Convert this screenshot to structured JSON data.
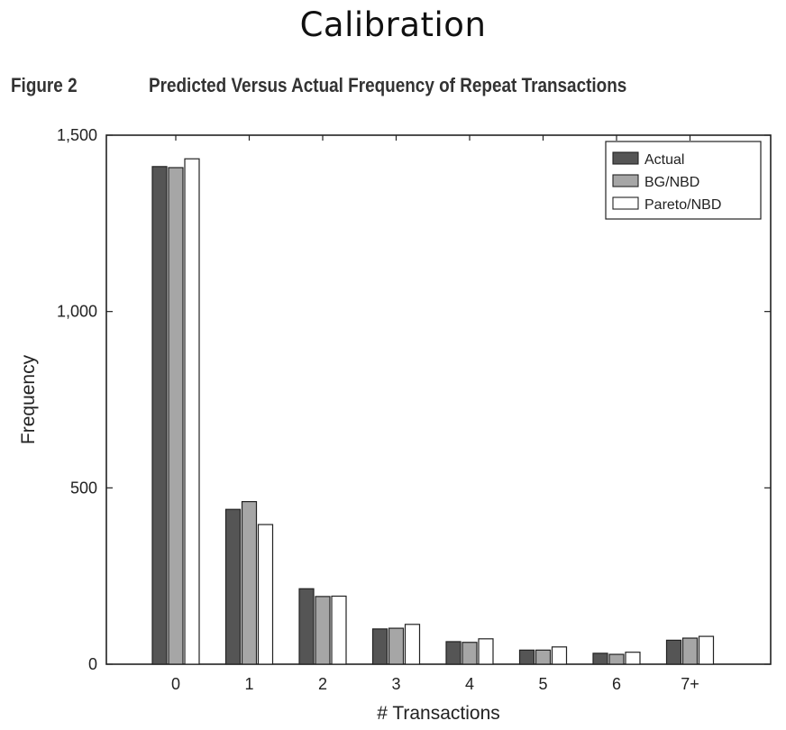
{
  "page": {
    "title": "Calibration",
    "figure_label": "Figure 2",
    "figure_caption": "Predicted Versus Actual Frequency of Repeat Transactions"
  },
  "chart_data": {
    "type": "bar",
    "xlabel": "# Transactions",
    "ylabel": "Frequency",
    "ylim": [
      0,
      1500
    ],
    "yticks": [
      0,
      500,
      1000,
      1500
    ],
    "ytick_labels": [
      "0",
      "500",
      "1,000",
      "1,500"
    ],
    "grid": false,
    "legend_position": "top-right",
    "categories": [
      "0",
      "1",
      "2",
      "3",
      "4",
      "5",
      "6",
      "7+"
    ],
    "series": [
      {
        "name": "Actual",
        "color": "#555555",
        "values": [
          1411,
          439,
          214,
          100,
          64,
          40,
          31,
          68
        ]
      },
      {
        "name": "BG/NBD",
        "color": "#a6a6a6",
        "values": [
          1408,
          461,
          192,
          102,
          62,
          40,
          28,
          74
        ]
      },
      {
        "name": "Pareto/NBD",
        "color": "#ffffff",
        "values": [
          1433,
          396,
          193,
          113,
          72,
          49,
          34,
          79
        ]
      }
    ]
  }
}
